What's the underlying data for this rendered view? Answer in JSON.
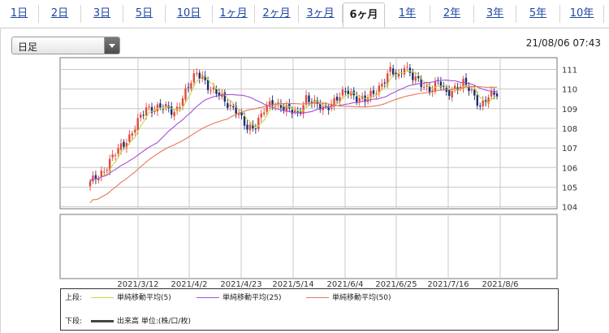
{
  "tabs": [
    {
      "label": "1日",
      "active": false
    },
    {
      "label": "2日",
      "active": false
    },
    {
      "label": "3日",
      "active": false
    },
    {
      "label": "5日",
      "active": false
    },
    {
      "label": "10日",
      "active": false
    },
    {
      "label": "1ヶ月",
      "active": false
    },
    {
      "label": "2ヶ月",
      "active": false
    },
    {
      "label": "3ヶ月",
      "active": false
    },
    {
      "label": "6ヶ月",
      "active": true
    },
    {
      "label": "1年",
      "active": false
    },
    {
      "label": "2年",
      "active": false
    },
    {
      "label": "3年",
      "active": false
    },
    {
      "label": "5年",
      "active": false
    },
    {
      "label": "10年",
      "active": false
    }
  ],
  "period_select": {
    "value": "日足"
  },
  "datetime": "21/08/06 07:43",
  "legend": {
    "upper_label": "上段:",
    "lower_label": "下段:",
    "items": [
      {
        "label": "単純移動平均(5)",
        "color": "#c5d94a"
      },
      {
        "label": "単純移動平均(25)",
        "color": "#a64fd6"
      },
      {
        "label": "単純移動平均(50)",
        "color": "#e8765a"
      }
    ],
    "volume_label": "出来高 単位:(株/口/枚)"
  },
  "chart_data": {
    "type": "candlestick",
    "x_labels": [
      "2021/3/12",
      "2021/4/2",
      "2021/4/23",
      "2021/5/14",
      "2021/6/4",
      "2021/6/25",
      "2021/7/16",
      "2021/8/6"
    ],
    "y_ticks": [
      104,
      105,
      106,
      107,
      108,
      109,
      110,
      111
    ],
    "ylim": [
      103.9,
      111.6
    ],
    "grid": true,
    "up_color": "#e2483c",
    "down_color": "#1c2c73",
    "close_path": [
      [
        0,
        105.2
      ],
      [
        5,
        105.9
      ],
      [
        9,
        106.7
      ],
      [
        14,
        107.6
      ],
      [
        17,
        108.3
      ],
      [
        20,
        109.0
      ],
      [
        25,
        109.1
      ],
      [
        30,
        108.8
      ],
      [
        33,
        109.6
      ],
      [
        38,
        110.8
      ],
      [
        40,
        110.7
      ],
      [
        43,
        109.9
      ],
      [
        46,
        109.7
      ],
      [
        49,
        109.3
      ],
      [
        52,
        108.9
      ],
      [
        54,
        108.4
      ],
      [
        56,
        108.0
      ],
      [
        59,
        108.2
      ],
      [
        62,
        108.9
      ],
      [
        65,
        109.3
      ],
      [
        68,
        109.2
      ],
      [
        71,
        108.9
      ],
      [
        74,
        108.7
      ],
      [
        77,
        109.6
      ],
      [
        80,
        109.2
      ],
      [
        83,
        109.0
      ],
      [
        86,
        109.3
      ],
      [
        89,
        109.6
      ],
      [
        92,
        109.9
      ],
      [
        95,
        109.6
      ],
      [
        98,
        109.4
      ],
      [
        101,
        109.8
      ],
      [
        104,
        110.3
      ],
      [
        107,
        110.9
      ],
      [
        110,
        110.6
      ],
      [
        112,
        111.3
      ],
      [
        115,
        110.6
      ],
      [
        118,
        110.2
      ],
      [
        121,
        110.0
      ],
      [
        124,
        110.4
      ],
      [
        127,
        109.7
      ],
      [
        130,
        110.1
      ],
      [
        133,
        110.3
      ],
      [
        136,
        109.8
      ],
      [
        139,
        109.2
      ],
      [
        142,
        109.6
      ],
      [
        145,
        109.7
      ]
    ],
    "series": [
      {
        "name": "単純移動平均(5)",
        "color": "#c5d94a",
        "period": 5
      },
      {
        "name": "単純移動平均(25)",
        "color": "#a64fd6",
        "period": 25
      },
      {
        "name": "単純移動平均(50)",
        "color": "#e8765a",
        "period": 50
      }
    ]
  }
}
